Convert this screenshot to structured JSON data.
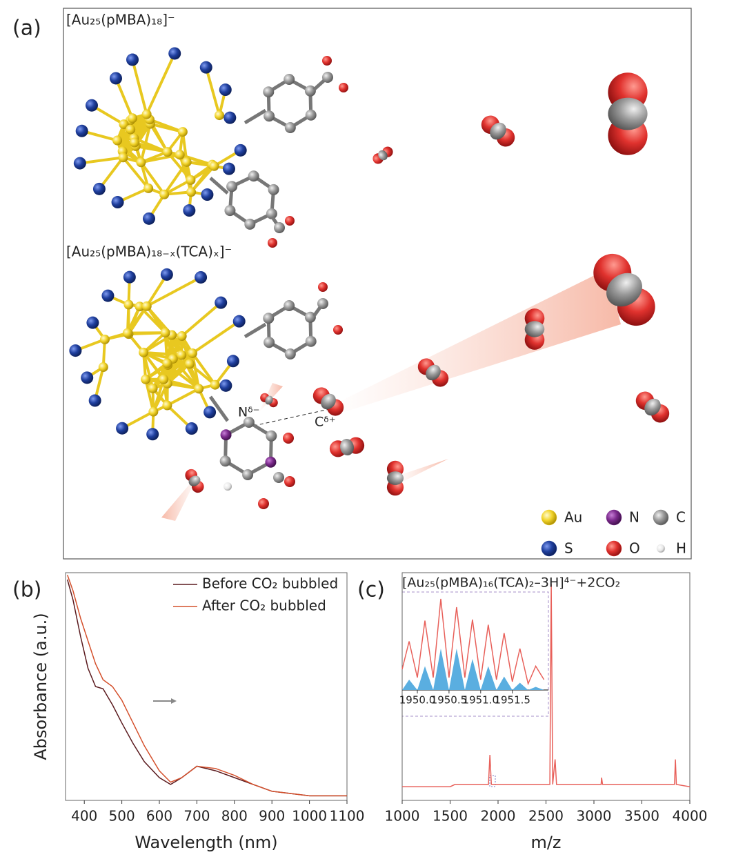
{
  "panel_labels": [
    "(a)",
    "(b)",
    "(c)"
  ],
  "illustration": {
    "title_top": "[Au₂₅(pMBA)₁₈]⁻",
    "title_bottom": "[Au₂₅(pMBA)₁₈₋ₓ(TCA)ₓ]⁻",
    "charge_labels": [
      "Nᵟ⁻",
      "Cᵟ⁺"
    ],
    "legend": [
      {
        "label": "Au",
        "color": "#f2d42a"
      },
      {
        "label": "N",
        "color": "#7b2a8c"
      },
      {
        "label": "C",
        "color": "#808080"
      },
      {
        "label": "S",
        "color": "#1f3f9e"
      },
      {
        "label": "O",
        "color": "#e0322e"
      },
      {
        "label": "H",
        "color": "#e8e8e8"
      }
    ]
  },
  "chart_data": [
    {
      "type": "line",
      "xlabel": "Wavelength (nm)",
      "ylabel": "Absorbance (a.u.)",
      "x": [
        355,
        370,
        390,
        410,
        430,
        450,
        475,
        500,
        530,
        560,
        600,
        630,
        660,
        700,
        750,
        800,
        850,
        900,
        1000,
        1100
      ],
      "xlim": [
        350,
        1100
      ],
      "xticks": [
        400,
        500,
        600,
        700,
        800,
        900,
        1000,
        1100
      ],
      "ylim": [
        0,
        1
      ],
      "legend": "upper right",
      "series": [
        {
          "name": "Before CO₂ bubbled",
          "color": "#5a1a1e",
          "values": [
            0.97,
            0.88,
            0.72,
            0.58,
            0.5,
            0.49,
            0.42,
            0.34,
            0.25,
            0.17,
            0.1,
            0.07,
            0.1,
            0.15,
            0.13,
            0.1,
            0.07,
            0.04,
            0.02,
            0.02
          ]
        },
        {
          "name": "After CO₂ bubbled",
          "color": "#d4502c",
          "values": [
            0.99,
            0.92,
            0.8,
            0.7,
            0.6,
            0.53,
            0.5,
            0.44,
            0.34,
            0.24,
            0.13,
            0.08,
            0.1,
            0.15,
            0.14,
            0.11,
            0.07,
            0.04,
            0.02,
            0.02
          ]
        }
      ]
    },
    {
      "type": "line",
      "title": "[Au₂₅(pMBA)₁₆(TCA)₂–3H]⁴⁻+2CO₂",
      "xlabel": "m/z",
      "x": [
        1000,
        1500,
        1550,
        1900,
        1915,
        1930,
        2540,
        2555,
        2570,
        2595,
        2610,
        3075,
        3080,
        3090,
        3840,
        3850,
        3860,
        4000
      ],
      "xlim": [
        1000,
        4000
      ],
      "xticks": [
        1000,
        1500,
        2000,
        2500,
        3000,
        3500,
        4000
      ],
      "ylim": [
        0,
        1
      ],
      "series": [
        {
          "color": "#e8605a",
          "values": [
            0.06,
            0.06,
            0.07,
            0.07,
            0.2,
            0.07,
            0.07,
            0.95,
            0.07,
            0.18,
            0.07,
            0.07,
            0.1,
            0.07,
            0.07,
            0.18,
            0.07,
            0.06
          ]
        }
      ]
    },
    {
      "type": "line",
      "x": [
        1949.76,
        1949.87,
        1950.0,
        1950.12,
        1950.25,
        1950.37,
        1950.5,
        1950.62,
        1950.75,
        1950.87,
        1951.0,
        1951.12,
        1951.25,
        1951.37,
        1951.5,
        1951.62,
        1951.75,
        1951.87,
        1952.0
      ],
      "xlim": [
        1949.76,
        1952.07
      ],
      "xticks": [
        {
          "value": 1950,
          "label": "1950.0"
        },
        1950.5,
        {
          "value": 1951,
          "label": "1951.0"
        },
        1951.5
      ],
      "ylim": [
        0,
        1
      ],
      "series": [
        {
          "color": "#5aaee0",
          "fill": true,
          "values": [
            0,
            0.1,
            0,
            0.23,
            0,
            0.4,
            0,
            0.4,
            0,
            0.3,
            0,
            0.23,
            0,
            0.13,
            0,
            0.07,
            0,
            0.03,
            0
          ]
        },
        {
          "color": "#e8605a",
          "values": [
            0.2,
            0.47,
            0.12,
            0.67,
            0.12,
            0.88,
            0.12,
            0.8,
            0.12,
            0.68,
            0.1,
            0.63,
            0.1,
            0.55,
            0.08,
            0.4,
            0.06,
            0.23,
            0.1
          ]
        }
      ]
    }
  ]
}
